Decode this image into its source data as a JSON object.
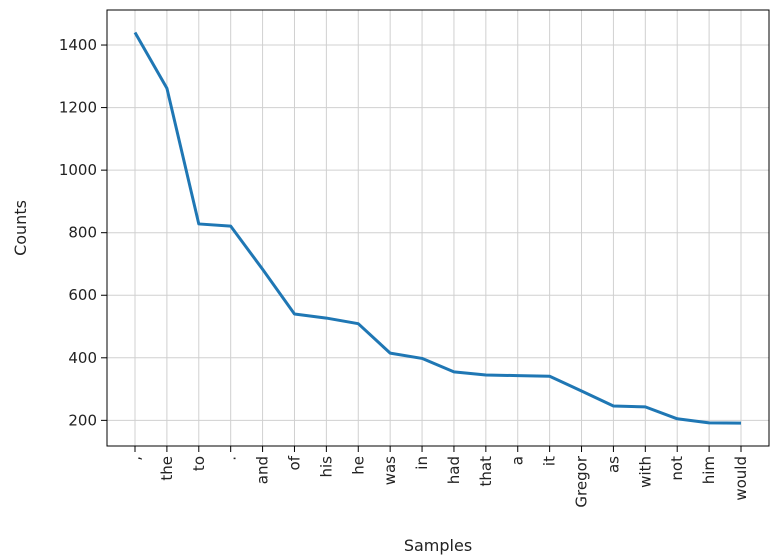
{
  "chart_data": {
    "type": "line",
    "xlabel": "Samples",
    "ylabel": "Counts",
    "categories": [
      ",",
      "the",
      "to",
      ".",
      "and",
      "of",
      "his",
      "he",
      "was",
      "in",
      "had",
      "that",
      "a",
      "it",
      "Gregor",
      "as",
      "with",
      "not",
      "him",
      "would"
    ],
    "series": [
      {
        "values": [
          1440,
          1262,
          828,
          821,
          683,
          540,
          527,
          509,
          415,
          398,
          355,
          345,
          343,
          341,
          294,
          246,
          243,
          205,
          192,
          191
        ]
      }
    ],
    "yticks": [
      200,
      400,
      600,
      800,
      1000,
      1200,
      1400
    ],
    "ylim": [
      118,
      1512
    ],
    "grid": true,
    "line_color": "#1f77b4",
    "grid_color": "#d0d0d0"
  }
}
